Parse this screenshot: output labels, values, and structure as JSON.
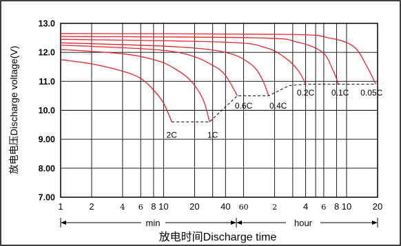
{
  "chart_data": {
    "type": "line",
    "xlabel": "放电时间Discharge time",
    "ylabel": "放电电压Discharge voltage(V)",
    "x_scale": "log",
    "xlim": [
      1,
      1200
    ],
    "ylim": [
      7.0,
      13.0
    ],
    "grid": true,
    "y_ticks": [
      "13.0",
      "12.0",
      "11.0",
      "10.0",
      "9.00",
      "8.00",
      "7.00"
    ],
    "x_ticks": [
      {
        "label": "1",
        "minutes": 1,
        "style": "major"
      },
      {
        "label": "2",
        "minutes": 2,
        "style": "major"
      },
      {
        "label": "4",
        "minutes": 4,
        "style": "minor"
      },
      {
        "label": "6",
        "minutes": 6,
        "style": "minor"
      },
      {
        "label": "8",
        "minutes": 8,
        "style": "major"
      },
      {
        "label": "10",
        "minutes": 10,
        "style": "major"
      },
      {
        "label": "20",
        "minutes": 20,
        "style": "major"
      },
      {
        "label": "40",
        "minutes": 40,
        "style": "major"
      },
      {
        "label": "60",
        "minutes": 60,
        "style": "minor"
      },
      {
        "label": "2",
        "minutes": 120,
        "style": "minor"
      },
      {
        "label": "4",
        "minutes": 240,
        "style": "major"
      },
      {
        "label": "6",
        "minutes": 360,
        "style": "minor"
      },
      {
        "label": "8",
        "minutes": 480,
        "style": "major"
      },
      {
        "label": "10",
        "minutes": 600,
        "style": "major"
      },
      {
        "label": "20",
        "minutes": 1200,
        "style": "major"
      }
    ],
    "x_grid_minutes": [
      2,
      4,
      6,
      8,
      10,
      20,
      30,
      40,
      60,
      120,
      180,
      240,
      300,
      360,
      480,
      600,
      1200
    ],
    "y_grid": [
      8.0,
      9.0,
      10.0,
      11.0,
      12.0
    ],
    "units": {
      "min": "min",
      "hour": "hour"
    },
    "series": [
      {
        "name": "2C",
        "points": [
          [
            1,
            11.75
          ],
          [
            2,
            11.6
          ],
          [
            4,
            11.35
          ],
          [
            6,
            11.1
          ],
          [
            8,
            10.7
          ],
          [
            10,
            10.25
          ],
          [
            12,
            9.6
          ]
        ],
        "label_at": [
          12,
          9.15
        ]
      },
      {
        "name": "1C",
        "points": [
          [
            1,
            12.1
          ],
          [
            4,
            11.95
          ],
          [
            8,
            11.75
          ],
          [
            12,
            11.5
          ],
          [
            18,
            11.05
          ],
          [
            24,
            10.4
          ],
          [
            28,
            9.6
          ]
        ],
        "label_at": [
          30,
          9.15
        ]
      },
      {
        "name": "0.6C",
        "points": [
          [
            1,
            12.25
          ],
          [
            8,
            12.1
          ],
          [
            18,
            11.9
          ],
          [
            30,
            11.55
          ],
          [
            40,
            11.2
          ],
          [
            52,
            10.5
          ]
        ],
        "label_at": [
          60,
          10.15
        ]
      },
      {
        "name": "0.4C",
        "points": [
          [
            1,
            12.33
          ],
          [
            12,
            12.2
          ],
          [
            40,
            12.0
          ],
          [
            70,
            11.6
          ],
          [
            90,
            11.1
          ],
          [
            105,
            10.5
          ]
        ],
        "label_at": [
          130,
          10.15
        ]
      },
      {
        "name": "0.2C",
        "points": [
          [
            1,
            12.45
          ],
          [
            40,
            12.35
          ],
          [
            100,
            12.15
          ],
          [
            160,
            11.75
          ],
          [
            210,
            11.3
          ],
          [
            240,
            10.9
          ]
        ],
        "label_at": [
          240,
          10.6
        ]
      },
      {
        "name": "0.1C",
        "points": [
          [
            1,
            12.55
          ],
          [
            80,
            12.5
          ],
          [
            200,
            12.35
          ],
          [
            350,
            12.0
          ],
          [
            440,
            11.4
          ],
          [
            500,
            10.9
          ]
        ],
        "label_at": [
          520,
          10.6
        ]
      },
      {
        "name": "0.05C",
        "points": [
          [
            1,
            12.65
          ],
          [
            150,
            12.62
          ],
          [
            400,
            12.5
          ],
          [
            700,
            12.2
          ],
          [
            950,
            11.5
          ],
          [
            1150,
            10.9
          ]
        ],
        "label_at": [
          1050,
          10.6
        ]
      }
    ],
    "cutoff_line": [
      [
        12,
        9.6
      ],
      [
        28,
        9.6
      ],
      [
        52,
        10.5
      ],
      [
        105,
        10.5
      ],
      [
        165,
        10.85
      ],
      [
        240,
        10.9
      ],
      [
        1150,
        10.9
      ]
    ]
  }
}
